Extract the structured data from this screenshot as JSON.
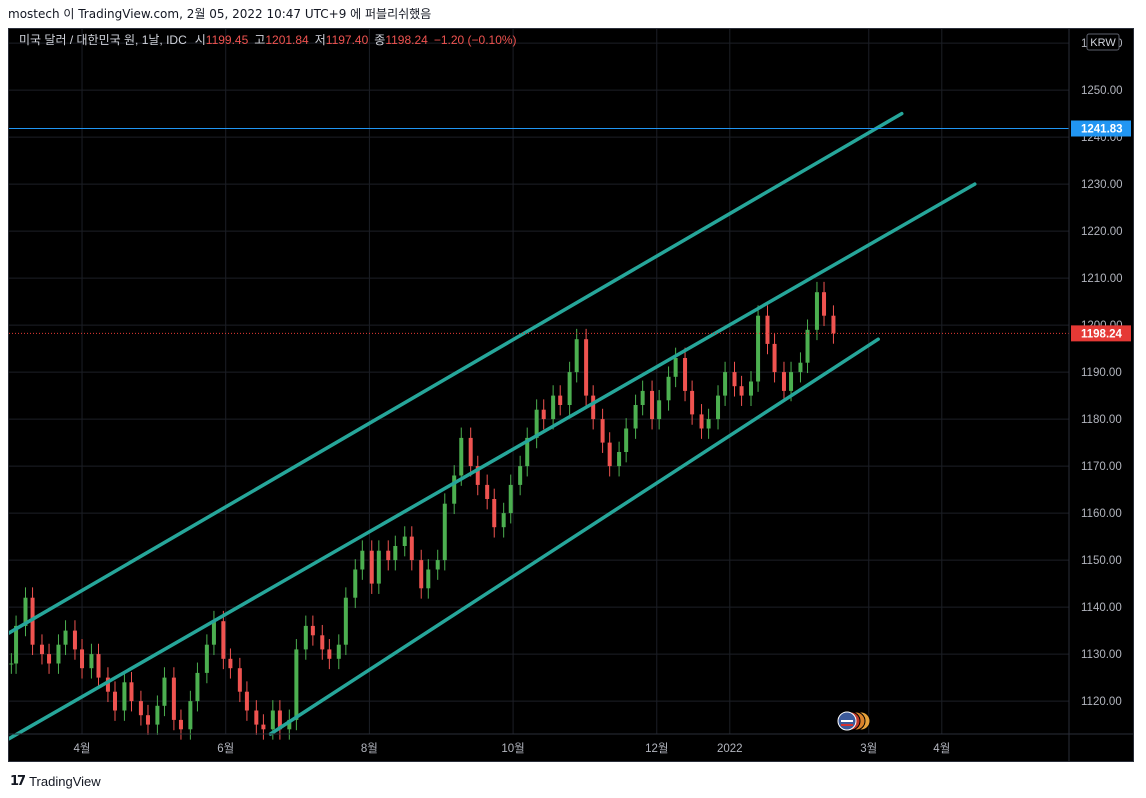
{
  "header": {
    "caption": "mostech 이 TradingView.com, 2월 05, 2022 10:47 UTC+9 에 퍼블리쉬했음"
  },
  "legend": {
    "symbol": "미국 달러 / 대한민국 원, 1날, IDC",
    "open_label": "시",
    "open": "1199.45",
    "high_label": "고",
    "high": "1201.84",
    "low_label": "저",
    "low": "1197.40",
    "close_label": "종",
    "close": "1198.24",
    "change": "−1.20 (−0.10%)"
  },
  "currency_button": "KRW",
  "footer": {
    "brand": "TradingView"
  },
  "chart_data": {
    "type": "candlestick",
    "y_axis": {
      "range": [
        1113,
        1263
      ],
      "ticks": [
        "1260.00",
        "1250.00",
        "1240.00",
        "1230.00",
        "1220.00",
        "1210.00",
        "1200.00",
        "1190.00",
        "1180.00",
        "1170.00",
        "1160.00",
        "1150.00",
        "1140.00",
        "1130.00",
        "1120.00"
      ],
      "tick_values": [
        1260,
        1250,
        1240,
        1230,
        1220,
        1210,
        1200,
        1190,
        1180,
        1170,
        1160,
        1150,
        1140,
        1130,
        1120
      ]
    },
    "x_axis": {
      "range": [
        "2021-03-01",
        "2022-05-25"
      ],
      "ticks": [
        {
          "date": "2021-04-01",
          "label": "4월"
        },
        {
          "date": "2021-06-01",
          "label": "6월"
        },
        {
          "date": "2021-08-01",
          "label": "8월"
        },
        {
          "date": "2021-10-01",
          "label": "10월"
        },
        {
          "date": "2021-12-01",
          "label": "12월"
        },
        {
          "date": "2022-01-01",
          "label": "2022"
        },
        {
          "date": "2022-03-01",
          "label": "3월"
        },
        {
          "date": "2022-04-01",
          "label": "4월"
        }
      ]
    },
    "grid": true,
    "horizontal_line": {
      "value": 1241.83,
      "label": "1241.83",
      "color": "#2196f3"
    },
    "last_price": {
      "value": 1198.24,
      "label": "1198.24",
      "color": "#e53935"
    },
    "channel_lines": [
      {
        "name": "upper",
        "from": {
          "date": "2021-03-01",
          "value": 1134.5
        },
        "to": {
          "date": "2022-03-15",
          "value": 1245
        }
      },
      {
        "name": "middle",
        "from": {
          "date": "2021-03-01",
          "value": 1112
        },
        "to": {
          "date": "2022-04-15",
          "value": 1230
        }
      },
      {
        "name": "lower",
        "from": {
          "date": "2021-06-20",
          "value": 1113
        },
        "to": {
          "date": "2022-03-05",
          "value": 1197
        }
      }
    ],
    "channel_color": "#26a69a",
    "up_color": "#4caf50",
    "down_color": "#ef5350",
    "closes": [
      {
        "date": "2021-03-02",
        "close": 1128
      },
      {
        "date": "2021-03-04",
        "close": 1136
      },
      {
        "date": "2021-03-08",
        "close": 1142
      },
      {
        "date": "2021-03-11",
        "close": 1132
      },
      {
        "date": "2021-03-15",
        "close": 1130
      },
      {
        "date": "2021-03-18",
        "close": 1128
      },
      {
        "date": "2021-03-22",
        "close": 1132
      },
      {
        "date": "2021-03-25",
        "close": 1135
      },
      {
        "date": "2021-03-29",
        "close": 1131
      },
      {
        "date": "2021-04-01",
        "close": 1127
      },
      {
        "date": "2021-04-05",
        "close": 1130
      },
      {
        "date": "2021-04-08",
        "close": 1125
      },
      {
        "date": "2021-04-12",
        "close": 1122
      },
      {
        "date": "2021-04-15",
        "close": 1118
      },
      {
        "date": "2021-04-19",
        "close": 1124
      },
      {
        "date": "2021-04-22",
        "close": 1120
      },
      {
        "date": "2021-04-26",
        "close": 1117
      },
      {
        "date": "2021-04-29",
        "close": 1115
      },
      {
        "date": "2021-05-03",
        "close": 1119
      },
      {
        "date": "2021-05-06",
        "close": 1125
      },
      {
        "date": "2021-05-10",
        "close": 1116
      },
      {
        "date": "2021-05-13",
        "close": 1114
      },
      {
        "date": "2021-05-17",
        "close": 1120
      },
      {
        "date": "2021-05-20",
        "close": 1126
      },
      {
        "date": "2021-05-24",
        "close": 1132
      },
      {
        "date": "2021-05-27",
        "close": 1137
      },
      {
        "date": "2021-05-31",
        "close": 1129
      },
      {
        "date": "2021-06-03",
        "close": 1127
      },
      {
        "date": "2021-06-07",
        "close": 1122
      },
      {
        "date": "2021-06-10",
        "close": 1118
      },
      {
        "date": "2021-06-14",
        "close": 1115
      },
      {
        "date": "2021-06-17",
        "close": 1114
      },
      {
        "date": "2021-06-21",
        "close": 1118
      },
      {
        "date": "2021-06-24",
        "close": 1114
      },
      {
        "date": "2021-06-28",
        "close": 1116
      },
      {
        "date": "2021-07-01",
        "close": 1131
      },
      {
        "date": "2021-07-05",
        "close": 1136
      },
      {
        "date": "2021-07-08",
        "close": 1134
      },
      {
        "date": "2021-07-12",
        "close": 1131
      },
      {
        "date": "2021-07-15",
        "close": 1129
      },
      {
        "date": "2021-07-19",
        "close": 1132
      },
      {
        "date": "2021-07-22",
        "close": 1142
      },
      {
        "date": "2021-07-26",
        "close": 1148
      },
      {
        "date": "2021-07-29",
        "close": 1152
      },
      {
        "date": "2021-08-02",
        "close": 1145
      },
      {
        "date": "2021-08-05",
        "close": 1152
      },
      {
        "date": "2021-08-09",
        "close": 1150
      },
      {
        "date": "2021-08-12",
        "close": 1153
      },
      {
        "date": "2021-08-16",
        "close": 1155
      },
      {
        "date": "2021-08-19",
        "close": 1150
      },
      {
        "date": "2021-08-23",
        "close": 1144
      },
      {
        "date": "2021-08-26",
        "close": 1148
      },
      {
        "date": "2021-08-30",
        "close": 1150
      },
      {
        "date": "2021-09-02",
        "close": 1162
      },
      {
        "date": "2021-09-06",
        "close": 1168
      },
      {
        "date": "2021-09-09",
        "close": 1176
      },
      {
        "date": "2021-09-13",
        "close": 1170
      },
      {
        "date": "2021-09-16",
        "close": 1166
      },
      {
        "date": "2021-09-20",
        "close": 1163
      },
      {
        "date": "2021-09-23",
        "close": 1157
      },
      {
        "date": "2021-09-27",
        "close": 1160
      },
      {
        "date": "2021-09-30",
        "close": 1166
      },
      {
        "date": "2021-10-04",
        "close": 1170
      },
      {
        "date": "2021-10-07",
        "close": 1176
      },
      {
        "date": "2021-10-11",
        "close": 1182
      },
      {
        "date": "2021-10-14",
        "close": 1180
      },
      {
        "date": "2021-10-18",
        "close": 1185
      },
      {
        "date": "2021-10-21",
        "close": 1183
      },
      {
        "date": "2021-10-25",
        "close": 1190
      },
      {
        "date": "2021-10-28",
        "close": 1197
      },
      {
        "date": "2021-11-01",
        "close": 1185
      },
      {
        "date": "2021-11-04",
        "close": 1180
      },
      {
        "date": "2021-11-08",
        "close": 1175
      },
      {
        "date": "2021-11-11",
        "close": 1170
      },
      {
        "date": "2021-11-15",
        "close": 1173
      },
      {
        "date": "2021-11-18",
        "close": 1178
      },
      {
        "date": "2021-11-22",
        "close": 1183
      },
      {
        "date": "2021-11-25",
        "close": 1186
      },
      {
        "date": "2021-11-29",
        "close": 1180
      },
      {
        "date": "2021-12-02",
        "close": 1184
      },
      {
        "date": "2021-12-06",
        "close": 1189
      },
      {
        "date": "2021-12-09",
        "close": 1193
      },
      {
        "date": "2021-12-13",
        "close": 1186
      },
      {
        "date": "2021-12-16",
        "close": 1181
      },
      {
        "date": "2021-12-20",
        "close": 1178
      },
      {
        "date": "2021-12-23",
        "close": 1180
      },
      {
        "date": "2021-12-27",
        "close": 1185
      },
      {
        "date": "2021-12-30",
        "close": 1190
      },
      {
        "date": "2022-01-03",
        "close": 1187
      },
      {
        "date": "2022-01-06",
        "close": 1185
      },
      {
        "date": "2022-01-10",
        "close": 1188
      },
      {
        "date": "2022-01-13",
        "close": 1202
      },
      {
        "date": "2022-01-17",
        "close": 1196
      },
      {
        "date": "2022-01-20",
        "close": 1190
      },
      {
        "date": "2022-01-24",
        "close": 1186
      },
      {
        "date": "2022-01-27",
        "close": 1190
      },
      {
        "date": "2022-01-31",
        "close": 1192
      },
      {
        "date": "2022-02-03",
        "close": 1199
      },
      {
        "date": "2022-02-07",
        "close": 1207
      },
      {
        "date": "2022-02-10",
        "close": 1202
      },
      {
        "date": "2022-02-14",
        "close": 1198.24
      }
    ]
  }
}
